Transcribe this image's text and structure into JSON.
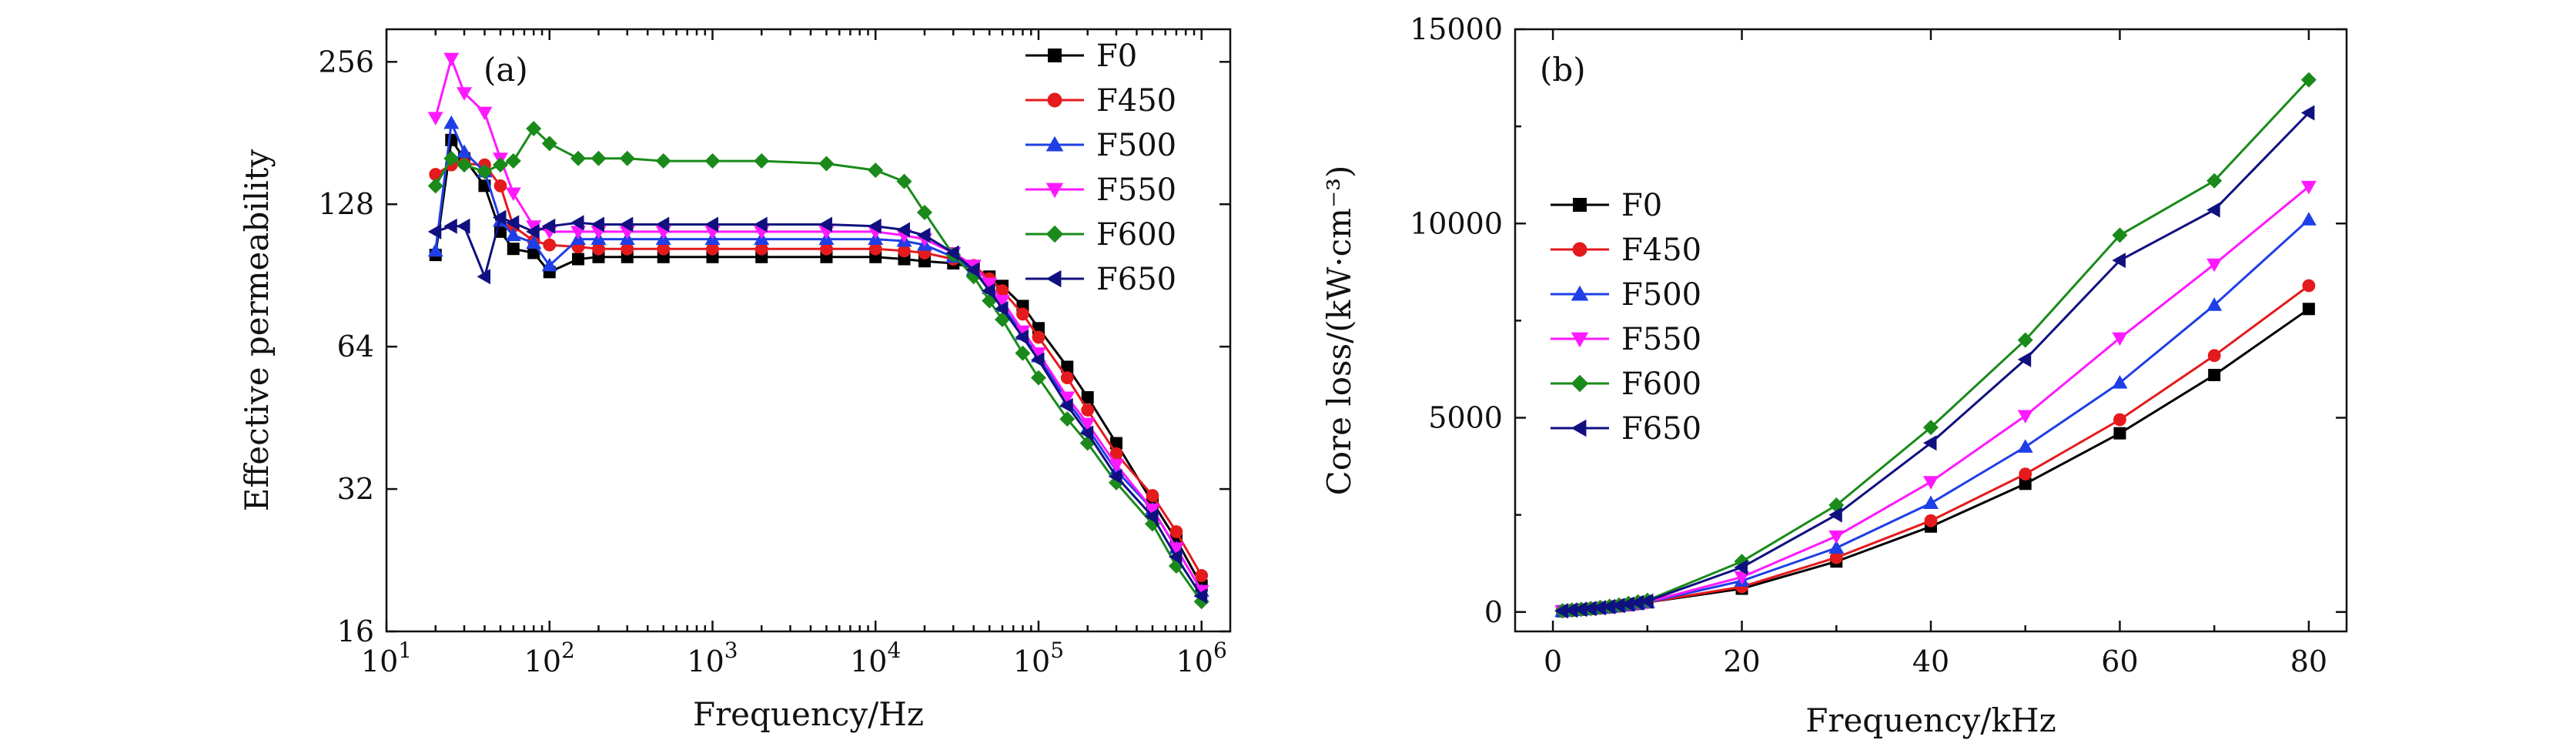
{
  "chart_data": [
    {
      "type": "line",
      "panel_label": "(a)",
      "xlabel": "Frequency/Hz",
      "ylabel": "Effective permeability",
      "xscale": "log",
      "yscale": "log2",
      "xlim": [
        10,
        1500000
      ],
      "ylim": [
        16,
        300
      ],
      "x_ticks": [
        10,
        100,
        1000,
        10000,
        100000,
        1000000
      ],
      "x_tick_labels": [
        {
          "base": "10",
          "exp": "1"
        },
        {
          "base": "10",
          "exp": "2"
        },
        {
          "base": "10",
          "exp": "3"
        },
        {
          "base": "10",
          "exp": "4"
        },
        {
          "base": "10",
          "exp": "5"
        },
        {
          "base": "10",
          "exp": "6"
        }
      ],
      "y_ticks": [
        16,
        32,
        64,
        128,
        256
      ],
      "y_tick_labels": [
        "16",
        "32",
        "64",
        "128",
        "256"
      ],
      "legend_position": "top-right",
      "series": [
        {
          "name": "F0",
          "color": "#000000",
          "marker": "square",
          "x": [
            20,
            25,
            30,
            40,
            50,
            60,
            80,
            100,
            150,
            200,
            300,
            500,
            1000,
            2000,
            5000,
            10000,
            15000,
            20000,
            30000,
            40000,
            50000,
            60000,
            80000,
            100000,
            150000,
            200000,
            300000,
            500000,
            700000,
            1000000
          ],
          "y": [
            100,
            175,
            160,
            140,
            112,
            103,
            101,
            92,
            98,
            99,
            99,
            99,
            99,
            99,
            99,
            99,
            98,
            97,
            96,
            94,
            90,
            86,
            78,
            70,
            58,
            50,
            40,
            30,
            25,
            20
          ]
        },
        {
          "name": "F450",
          "color": "#e41a1c",
          "marker": "circle",
          "x": [
            20,
            25,
            30,
            40,
            50,
            60,
            80,
            100,
            150,
            200,
            300,
            500,
            1000,
            2000,
            5000,
            10000,
            15000,
            20000,
            30000,
            40000,
            50000,
            60000,
            80000,
            100000,
            150000,
            200000,
            300000,
            500000,
            700000,
            1000000
          ],
          "y": [
            148,
            155,
            156,
            155,
            140,
            115,
            107,
            105,
            104,
            103,
            103,
            103,
            103,
            103,
            103,
            103,
            102,
            101,
            98,
            95,
            89,
            84,
            75,
            67,
            55,
            47,
            38,
            31,
            26,
            21
          ]
        },
        {
          "name": "F500",
          "color": "#1f3fe6",
          "marker": "triangle-up",
          "x": [
            20,
            25,
            30,
            40,
            50,
            60,
            80,
            100,
            150,
            200,
            300,
            500,
            1000,
            2000,
            5000,
            10000,
            15000,
            20000,
            30000,
            40000,
            50000,
            60000,
            80000,
            100000,
            150000,
            200000,
            300000,
            500000,
            700000,
            1000000
          ],
          "y": [
            102,
            190,
            165,
            150,
            118,
            110,
            106,
            95,
            108,
            108,
            108,
            108,
            108,
            108,
            108,
            108,
            107,
            105,
            99,
            93,
            85,
            78,
            68,
            61,
            49,
            43,
            35,
            29,
            24,
            19.5
          ]
        },
        {
          "name": "F550",
          "color": "#ff19ff",
          "marker": "triangle-down",
          "x": [
            20,
            25,
            30,
            40,
            50,
            60,
            80,
            100,
            150,
            200,
            300,
            500,
            1000,
            2000,
            5000,
            10000,
            15000,
            20000,
            30000,
            40000,
            50000,
            60000,
            80000,
            100000,
            150000,
            200000,
            300000,
            500000,
            700000,
            1000000
          ],
          "y": [
            195,
            260,
            220,
            200,
            160,
            135,
            115,
            112,
            112,
            112,
            112,
            112,
            112,
            112,
            112,
            112,
            110,
            108,
            101,
            95,
            87,
            80,
            69,
            62,
            50,
            44,
            36,
            29,
            24,
            19.5
          ]
        },
        {
          "name": "F600",
          "color": "#1a8a1a",
          "marker": "diamond",
          "x": [
            20,
            25,
            30,
            40,
            50,
            60,
            80,
            100,
            150,
            200,
            300,
            500,
            1000,
            2000,
            5000,
            10000,
            15000,
            20000,
            30000,
            40000,
            50000,
            60000,
            80000,
            100000,
            150000,
            200000,
            300000,
            500000,
            700000,
            1000000
          ],
          "y": [
            140,
            160,
            155,
            150,
            155,
            158,
            185,
            172,
            160,
            160,
            160,
            158,
            158,
            158,
            156,
            151,
            143,
            123,
            100,
            90,
            80,
            73,
            62,
            55,
            45,
            40,
            33,
            27,
            22,
            18.5
          ]
        },
        {
          "name": "F650",
          "color": "#101080",
          "marker": "triangle-left",
          "x": [
            20,
            25,
            30,
            40,
            50,
            60,
            80,
            100,
            150,
            200,
            300,
            500,
            1000,
            2000,
            5000,
            10000,
            15000,
            20000,
            30000,
            40000,
            50000,
            60000,
            80000,
            100000,
            150000,
            200000,
            300000,
            500000,
            700000,
            1000000
          ],
          "y": [
            112,
            115,
            115,
            90,
            120,
            117,
            112,
            115,
            117,
            116,
            116,
            116,
            116,
            116,
            116,
            115,
            113,
            110,
            101,
            93,
            84,
            77,
            67,
            60,
            48,
            42,
            34,
            28,
            23,
            19
          ]
        }
      ]
    },
    {
      "type": "line",
      "panel_label": "(b)",
      "xlabel": "Frequency/kHz",
      "ylabel": "Core loss/(kW·cm⁻³)",
      "xlim": [
        -4,
        84
      ],
      "ylim": [
        -500,
        15000
      ],
      "x_ticks": [
        0,
        20,
        40,
        60,
        80
      ],
      "x_tick_labels": [
        "0",
        "20",
        "40",
        "60",
        "80"
      ],
      "y_ticks": [
        0,
        5000,
        10000,
        15000
      ],
      "y_tick_labels": [
        "0",
        "5000",
        "10000",
        "15000"
      ],
      "legend_position": "upper-left",
      "series": [
        {
          "name": "F0",
          "color": "#000000",
          "marker": "square",
          "x": [
            1,
            2,
            3,
            4,
            5,
            6,
            7,
            8,
            9,
            10,
            20,
            30,
            40,
            50,
            60,
            70,
            80
          ],
          "y": [
            20,
            40,
            60,
            80,
            100,
            120,
            150,
            180,
            210,
            250,
            600,
            1300,
            2200,
            3300,
            4600,
            6100,
            7800
          ]
        },
        {
          "name": "F450",
          "color": "#e41a1c",
          "marker": "circle",
          "x": [
            1,
            2,
            3,
            4,
            5,
            6,
            7,
            8,
            9,
            10,
            20,
            30,
            40,
            50,
            60,
            70,
            80
          ],
          "y": [
            20,
            40,
            60,
            80,
            100,
            120,
            150,
            180,
            210,
            250,
            650,
            1400,
            2350,
            3550,
            4950,
            6600,
            8400
          ]
        },
        {
          "name": "F500",
          "color": "#1f3fe6",
          "marker": "triangle-up",
          "x": [
            1,
            2,
            3,
            4,
            5,
            6,
            7,
            8,
            9,
            10,
            20,
            30,
            40,
            50,
            60,
            70,
            80
          ],
          "y": [
            20,
            40,
            60,
            80,
            100,
            120,
            150,
            180,
            210,
            250,
            800,
            1650,
            2800,
            4250,
            5900,
            7900,
            10100
          ]
        },
        {
          "name": "F550",
          "color": "#ff19ff",
          "marker": "triangle-down",
          "x": [
            1,
            2,
            3,
            4,
            5,
            6,
            7,
            8,
            9,
            10,
            20,
            30,
            40,
            50,
            60,
            70,
            80
          ],
          "y": [
            20,
            40,
            60,
            80,
            110,
            130,
            160,
            190,
            220,
            260,
            900,
            1950,
            3350,
            5050,
            7050,
            8950,
            10950
          ]
        },
        {
          "name": "F600",
          "color": "#1a8a1a",
          "marker": "diamond",
          "x": [
            1,
            2,
            3,
            4,
            5,
            6,
            7,
            8,
            9,
            10,
            20,
            30,
            40,
            50,
            60,
            70,
            80
          ],
          "y": [
            30,
            50,
            70,
            90,
            120,
            150,
            180,
            220,
            260,
            300,
            1300,
            2750,
            4750,
            7000,
            9700,
            11100,
            13700
          ]
        },
        {
          "name": "F650",
          "color": "#101080",
          "marker": "triangle-left",
          "x": [
            1,
            2,
            3,
            4,
            5,
            6,
            7,
            8,
            9,
            10,
            20,
            30,
            40,
            50,
            60,
            70,
            80
          ],
          "y": [
            30,
            50,
            70,
            90,
            110,
            140,
            170,
            200,
            240,
            280,
            1150,
            2500,
            4350,
            6500,
            9050,
            10350,
            12850
          ]
        }
      ]
    }
  ]
}
